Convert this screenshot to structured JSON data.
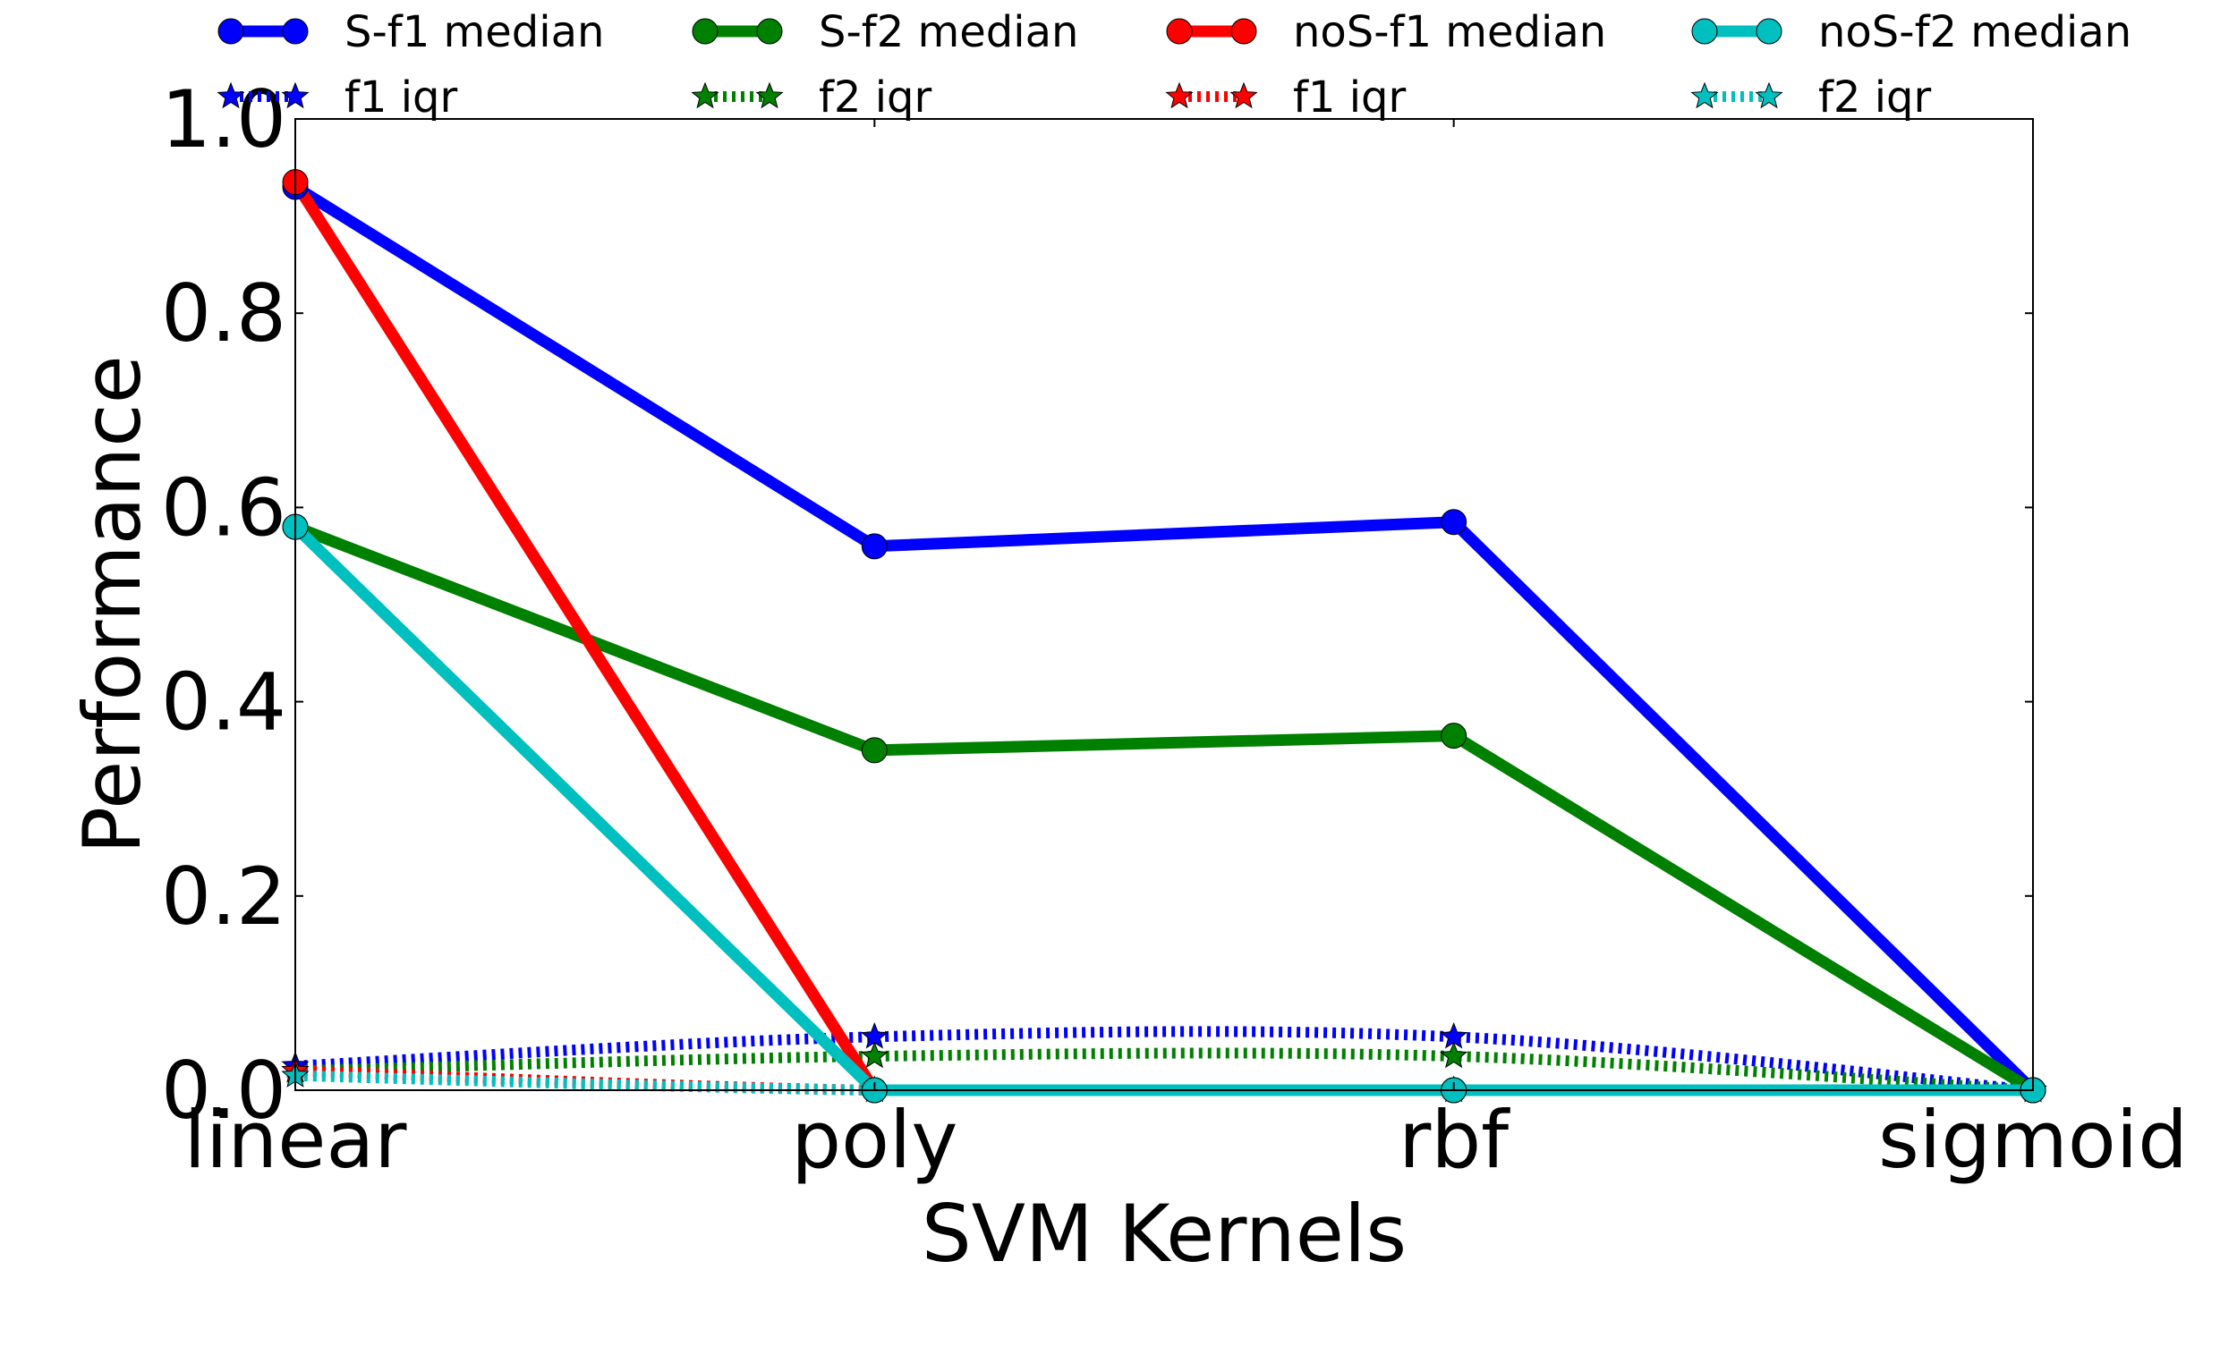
{
  "chart_data": {
    "type": "line",
    "title": "",
    "xlabel": "SVM Kernels",
    "ylabel": "Performance",
    "categories": [
      "linear",
      "poly",
      "rbf",
      "sigmoid"
    ],
    "ylim": [
      0,
      1.0
    ],
    "yticks": [
      0.0,
      0.2,
      0.4,
      0.6,
      0.8,
      1.0
    ],
    "ytick_labels": [
      "0.0",
      "0.2",
      "0.4",
      "0.6",
      "0.8",
      "1.0"
    ],
    "grid": false,
    "legend_position": "top",
    "series": [
      {
        "name": "S-f1 median",
        "style": "median",
        "color": "#0000ff",
        "values": [
          0.93,
          0.56,
          0.585,
          0.0
        ]
      },
      {
        "name": "f1 iqr",
        "style": "iqr",
        "color": "#0000ff",
        "values": [
          0.025,
          0.055,
          0.055,
          0.0
        ]
      },
      {
        "name": "S-f2 median",
        "style": "median",
        "color": "#008000",
        "values": [
          0.58,
          0.35,
          0.365,
          0.0
        ]
      },
      {
        "name": "f2 iqr",
        "style": "iqr",
        "color": "#008000",
        "values": [
          0.02,
          0.035,
          0.035,
          0.0
        ]
      },
      {
        "name": "noS-f1 median",
        "style": "median",
        "color": "#ff0000",
        "values": [
          0.935,
          0.0,
          0.0,
          0.0
        ]
      },
      {
        "name": "f1 iqr",
        "style": "iqr",
        "color": "#ff0000",
        "values": [
          0.02,
          0.0,
          0.0,
          0.0
        ]
      },
      {
        "name": "noS-f2 median",
        "style": "median",
        "color": "#00bfbf",
        "values": [
          0.58,
          0.0,
          0.0,
          0.0
        ]
      },
      {
        "name": "f2 iqr",
        "style": "iqr",
        "color": "#00bfbf",
        "values": [
          0.015,
          0.0,
          0.0,
          0.0
        ]
      }
    ]
  }
}
